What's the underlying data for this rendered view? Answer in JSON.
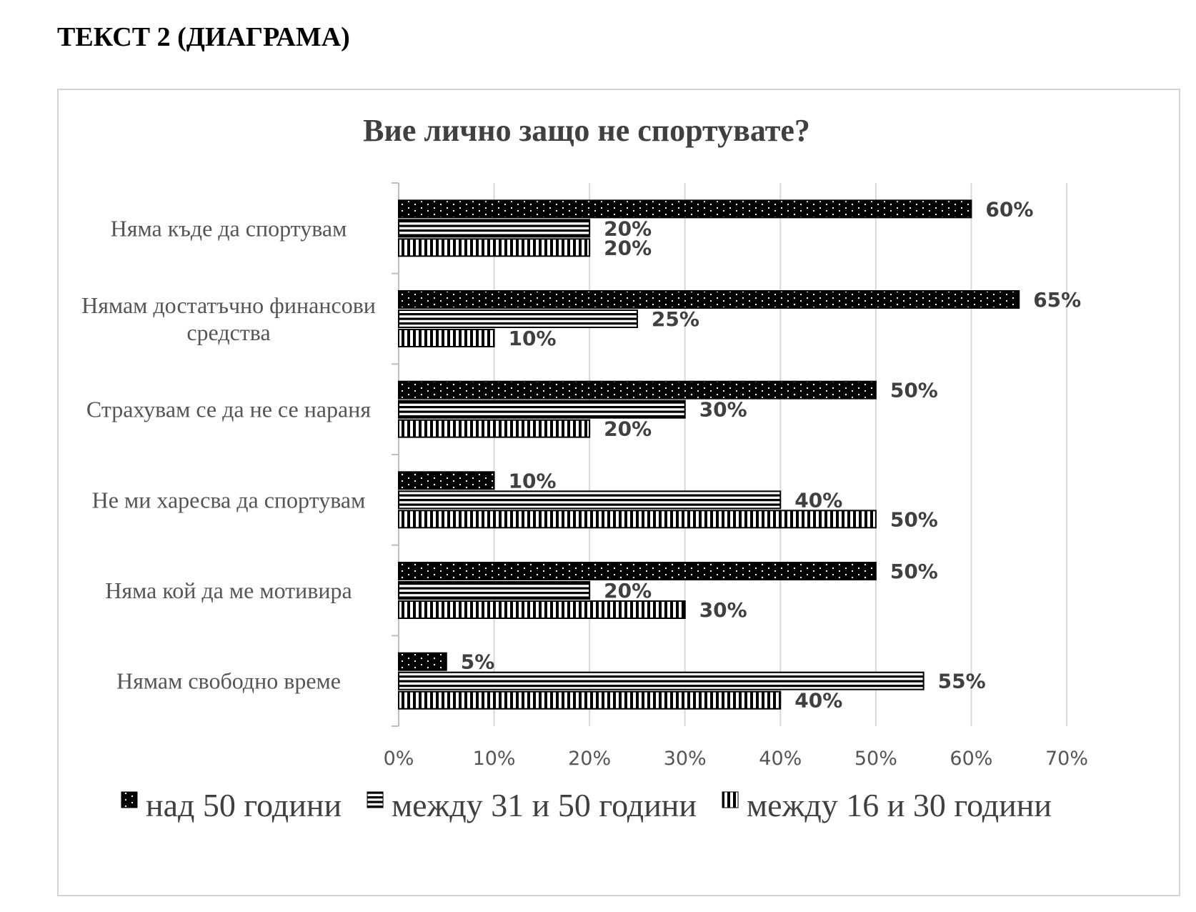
{
  "page": {
    "heading": "ТЕКСТ 2 (ДИАГРАМА)"
  },
  "chart_data": {
    "type": "bar",
    "orientation": "horizontal",
    "title": "Вие лично защо не спортувате?",
    "categories": [
      "Няма къде да спортувам",
      "Нямам достатъчно финансови средства",
      "Страхувам се да не се нараня",
      "Не ми харесва да спортувам",
      "Няма кой да ме мотивира",
      "Нямам свободно време"
    ],
    "category_lines": [
      [
        "Няма къде да спортувам"
      ],
      [
        "Нямам достатъчно финансови",
        "средства"
      ],
      [
        "Страхувам се да не се нараня"
      ],
      [
        "Не ми харесва да спортувам"
      ],
      [
        "Няма кой да ме мотивира"
      ],
      [
        "Нямам свободно време"
      ]
    ],
    "series": [
      {
        "name": "над 50 години",
        "pattern": "dots",
        "values": [
          60,
          65,
          50,
          10,
          50,
          5
        ]
      },
      {
        "name": "между 31 и 50 години",
        "pattern": "horizontal-stripes",
        "values": [
          20,
          25,
          30,
          40,
          20,
          55
        ]
      },
      {
        "name": "между 16 и 30 години",
        "pattern": "vertical-stripes",
        "values": [
          20,
          10,
          20,
          50,
          30,
          40
        ]
      }
    ],
    "xlim": [
      0,
      70
    ],
    "xticks": [
      0,
      10,
      20,
      30,
      40,
      50,
      60,
      70
    ],
    "tick_suffix": "%",
    "value_suffix": "%",
    "grid": "vertical",
    "legend_position": "bottom",
    "colors": {
      "bar": "#000000",
      "grid": "#d9d9d9",
      "axis": "#bfbfbf",
      "text": "#404040"
    }
  }
}
